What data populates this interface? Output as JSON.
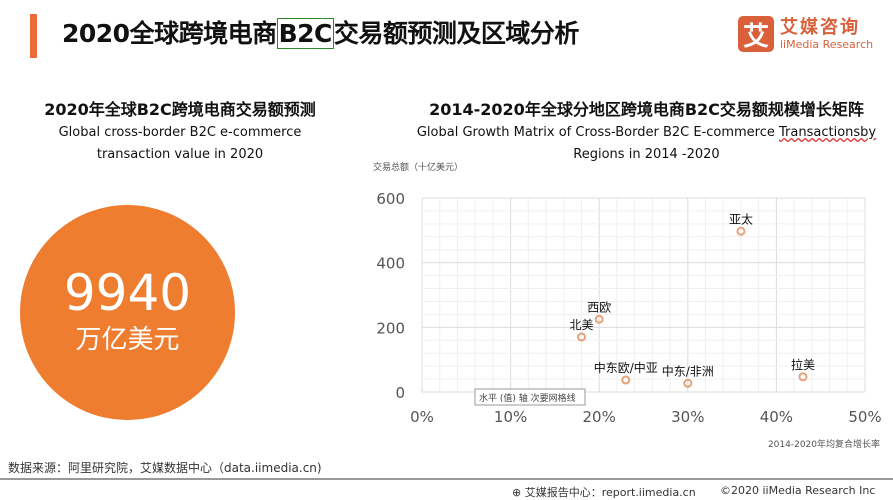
{
  "header": {
    "title_pre": "2020全球跨境电商",
    "title_box": "B2C",
    "title_post": "交易额预测及区域分析",
    "logo_mark": "艾",
    "logo_cn": "艾媒咨询",
    "logo_en": "iiMedia Research"
  },
  "left": {
    "title": "2020年全球B2C跨境电商交易额预测",
    "subtitle_line1": "Global cross-border B2C e-commerce",
    "subtitle_line2": "transaction value in 2020",
    "value": "9940",
    "unit": "万亿美元",
    "color": "#ee7d30"
  },
  "right": {
    "title": "2014-2020年全球分地区跨境电商B2C交易额规模增长矩阵",
    "subtitle_line1": "Global Growth Matrix of Cross-Border B2C E-commerce",
    "subtitle_ul": "Transactionsby",
    "subtitle_line2": "Regions  in 2014 -2020",
    "tooltip": "水平 (值) 轴 次要网格线"
  },
  "chart_data": {
    "type": "scatter",
    "xlabel": "2014-2020年均复合增长率",
    "ylabel": "交易总额（十亿美元）",
    "xlim": [
      0,
      50
    ],
    "ylim": [
      0,
      600
    ],
    "x_ticks": [
      "0%",
      "10%",
      "20%",
      "30%",
      "40%",
      "50%"
    ],
    "y_ticks": [
      "0",
      "200",
      "400",
      "600"
    ],
    "grid": true,
    "marker_color": "#e8a27a",
    "points": [
      {
        "label": "北美",
        "x": 18,
        "y": 170
      },
      {
        "label": "西欧",
        "x": 20,
        "y": 225
      },
      {
        "label": "中东欧/中亚",
        "x": 23,
        "y": 37
      },
      {
        "label": "中东/非洲",
        "x": 30,
        "y": 27
      },
      {
        "label": "亚太",
        "x": 36,
        "y": 497
      },
      {
        "label": "拉美",
        "x": 43,
        "y": 47
      }
    ]
  },
  "footer": {
    "source": "数据来源：阿里研究院，艾媒数据中心（data.iimedia.cn)",
    "report": "艾媒报告中心：report.iimedia.cn",
    "copyright": "©2020  iiMedia Research  Inc"
  }
}
